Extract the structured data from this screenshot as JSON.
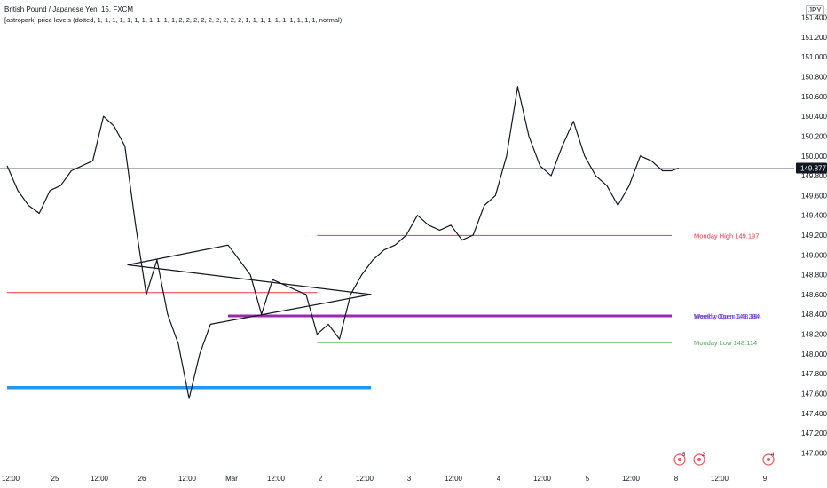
{
  "header": {
    "title": "British Pound / Japanese Yen, 15, FXCM",
    "indicator": "[astropark] price levels (dotted, 1, 1, 1, 1, 1, 1, 1, 1, 1, 1, 1, 2, 2, 2, 2, 2, 2, 2, 2, 2, 1, 1, 1, 1, 1, 1, 1, 1, 1, 1, normal)"
  },
  "currency_badge": "JPY",
  "colors": {
    "price_line": "#131722",
    "last_price_line": "#9598a1",
    "monday_high": "#f23645",
    "monday_low": "#4caf50",
    "monthly_open": "#2962ff",
    "weekly_open": "#9c27b0",
    "level_blue": "#2196f3",
    "axis_text": "#131722",
    "event_icon": "#f7525f"
  },
  "events": [
    {
      "date": "7",
      "count": "5"
    },
    {
      "date": "7",
      "count": "2"
    },
    {
      "date": "9",
      "count": "4"
    }
  ],
  "chart_data": {
    "type": "line",
    "title": "British Pound / Japanese Yen, 15, FXCM",
    "y_ticks": [
      "151.400",
      "151.200",
      "151.000",
      "150.800",
      "150.600",
      "150.400",
      "150.200",
      "150.000",
      "149.800",
      "149.600",
      "149.400",
      "149.200",
      "149.000",
      "148.800",
      "148.600",
      "148.400",
      "148.200",
      "148.000",
      "147.800",
      "147.600",
      "147.400",
      "147.200",
      "147.000"
    ],
    "ylim": [
      146.95,
      151.45
    ],
    "x_ticks": [
      "12:00",
      "25",
      "12:00",
      "26",
      "12:00",
      "Mar",
      "12:00",
      "2",
      "12:00",
      "3",
      "12:00",
      "4",
      "12:00",
      "5",
      "12:00",
      "8",
      "12:00",
      "9"
    ],
    "x_range": [
      "Feb 24 12:00",
      "Mar 9 12:00"
    ],
    "last_price": "149.877",
    "levels": [
      {
        "label": "Monday High 149.197",
        "value": 149.197,
        "from": "Mar 2",
        "to": "Mar 7 24:00",
        "color": "#f23645"
      },
      {
        "label": "Monday Low 148.114",
        "value": 148.114,
        "from": "Mar 2",
        "to": "Mar 7 24:00",
        "color": "#4caf50"
      },
      {
        "label": "Monthly Open 148.384",
        "value": 148.384,
        "from": "Mar 1",
        "to": "Mar 7 24:00",
        "color": "#2962ff"
      },
      {
        "label": "Weekly Open 148.384",
        "value": 148.384,
        "from": "Mar 1",
        "to": "Mar 7 24:00",
        "color": "#9c27b0"
      },
      {
        "label": "",
        "value": 148.62,
        "from": "Feb 24 12:00",
        "to": "Mar 1 24:00",
        "color": "#f23645"
      },
      {
        "label": "",
        "value": 147.65,
        "from": "Feb 24 12:00",
        "to": "Mar 1 24:00",
        "color": "#4caf50"
      },
      {
        "label": "",
        "value": 147.66,
        "from": "Feb 24 12:00",
        "to": "Feb 28 18:00",
        "color": "#2196f3"
      }
    ],
    "series": [
      {
        "x": [
          "Feb 24 12:00",
          "Feb 24 15:00",
          "Feb 24 18:00",
          "Feb 24 21:00",
          "Feb 25 00:00",
          "Feb 25 03:00",
          "Feb 25 06:00",
          "Feb 25 09:00",
          "Feb 25 12:00",
          "Feb 25 15:00",
          "Feb 25 18:00",
          "Feb 25 21:00",
          "Feb 26 00:00",
          "Feb 26 03:00",
          "Feb 26 06:00",
          "Feb 26 09:00",
          "Feb 26 12:00",
          "Feb 26 15:00",
          "Feb 26 18:00",
          "Feb 26 21:00",
          "Feb 28 18:00",
          "Feb 28 21:00",
          "Mar 1 00:00",
          "Mar 1 03:00",
          "Mar 1 06:00",
          "Mar 1 09:00",
          "Mar 1 12:00",
          "Mar 1 15:00",
          "Mar 1 18:00",
          "Mar 1 21:00",
          "Mar 2 00:00",
          "Mar 2 03:00",
          "Mar 2 06:00",
          "Mar 2 09:00",
          "Mar 2 12:00",
          "Mar 2 15:00",
          "Mar 2 18:00",
          "Mar 2 21:00",
          "Mar 3 00:00",
          "Mar 3 03:00",
          "Mar 3 06:00",
          "Mar 3 09:00",
          "Mar 3 12:00",
          "Mar 3 15:00",
          "Mar 3 18:00",
          "Mar 3 21:00",
          "Mar 4 00:00",
          "Mar 4 03:00",
          "Mar 4 06:00",
          "Mar 4 09:00",
          "Mar 4 12:00",
          "Mar 4 15:00",
          "Mar 4 18:00",
          "Mar 4 21:00",
          "Mar 5 00:00",
          "Mar 5 03:00",
          "Mar 5 06:00",
          "Mar 5 09:00",
          "Mar 5 12:00",
          "Mar 5 15:00",
          "Mar 5 18:00",
          "Mar 5 21:00",
          "Mar 7 18:00",
          "Mar 7 21:00"
        ],
        "y": [
          149.9,
          149.65,
          149.5,
          149.42,
          149.65,
          149.7,
          149.85,
          149.9,
          149.95,
          150.4,
          150.3,
          150.1,
          149.3,
          148.6,
          148.95,
          148.4,
          148.1,
          147.55,
          148.0,
          148.3,
          148.6,
          148.9,
          149.1,
          148.95,
          148.8,
          148.4,
          148.75,
          148.7,
          148.65,
          148.6,
          148.2,
          148.3,
          148.15,
          148.6,
          148.8,
          148.95,
          149.05,
          149.1,
          149.2,
          149.4,
          149.3,
          149.25,
          149.3,
          149.15,
          149.2,
          149.5,
          149.6,
          150.0,
          150.7,
          150.2,
          149.9,
          149.8,
          150.1,
          150.35,
          150.0,
          149.8,
          149.7,
          149.5,
          149.7,
          150.0,
          149.95,
          149.85,
          149.85,
          149.877
        ]
      }
    ]
  }
}
